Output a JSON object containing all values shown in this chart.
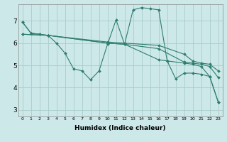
{
  "xlabel": "Humidex (Indice chaleur)",
  "bg_color": "#cce8e8",
  "grid_color": "#aacccc",
  "line_color": "#2e7d6e",
  "xlim": [
    -0.5,
    23.5
  ],
  "ylim": [
    2.7,
    7.75
  ],
  "xticks": [
    0,
    1,
    2,
    3,
    4,
    5,
    6,
    7,
    8,
    9,
    10,
    11,
    12,
    13,
    14,
    15,
    16,
    17,
    18,
    19,
    20,
    21,
    22,
    23
  ],
  "yticks": [
    3,
    4,
    5,
    6,
    7
  ],
  "series1": [
    [
      0,
      6.95
    ],
    [
      1,
      6.45
    ],
    [
      2,
      6.4
    ],
    [
      3,
      6.35
    ],
    [
      4,
      6.0
    ],
    [
      5,
      5.55
    ],
    [
      6,
      4.85
    ],
    [
      7,
      4.75
    ],
    [
      8,
      4.35
    ],
    [
      9,
      4.75
    ],
    [
      10,
      5.95
    ],
    [
      11,
      7.05
    ],
    [
      12,
      5.95
    ],
    [
      13,
      7.5
    ],
    [
      14,
      7.6
    ],
    [
      15,
      7.55
    ],
    [
      16,
      7.5
    ],
    [
      17,
      5.2
    ],
    [
      18,
      4.4
    ],
    [
      19,
      4.65
    ],
    [
      20,
      4.65
    ],
    [
      21,
      4.6
    ],
    [
      22,
      4.5
    ],
    [
      23,
      3.35
    ]
  ],
  "series2": [
    [
      0,
      6.95
    ],
    [
      1,
      6.45
    ],
    [
      2,
      6.4
    ],
    [
      3,
      6.35
    ],
    [
      10,
      6.0
    ],
    [
      12,
      5.95
    ],
    [
      16,
      5.25
    ],
    [
      17,
      5.2
    ],
    [
      19,
      5.1
    ],
    [
      20,
      5.05
    ],
    [
      21,
      4.95
    ],
    [
      22,
      4.5
    ],
    [
      23,
      3.35
    ]
  ],
  "series3": [
    [
      0,
      6.4
    ],
    [
      3,
      6.35
    ],
    [
      10,
      6.0
    ],
    [
      12,
      5.95
    ],
    [
      16,
      5.75
    ],
    [
      19,
      5.15
    ],
    [
      20,
      5.1
    ],
    [
      21,
      5.05
    ],
    [
      22,
      4.95
    ],
    [
      23,
      4.45
    ]
  ],
  "series4": [
    [
      0,
      6.4
    ],
    [
      3,
      6.35
    ],
    [
      10,
      6.05
    ],
    [
      12,
      6.0
    ],
    [
      16,
      5.9
    ],
    [
      19,
      5.5
    ],
    [
      20,
      5.2
    ],
    [
      21,
      5.1
    ],
    [
      22,
      5.05
    ],
    [
      23,
      4.75
    ]
  ]
}
